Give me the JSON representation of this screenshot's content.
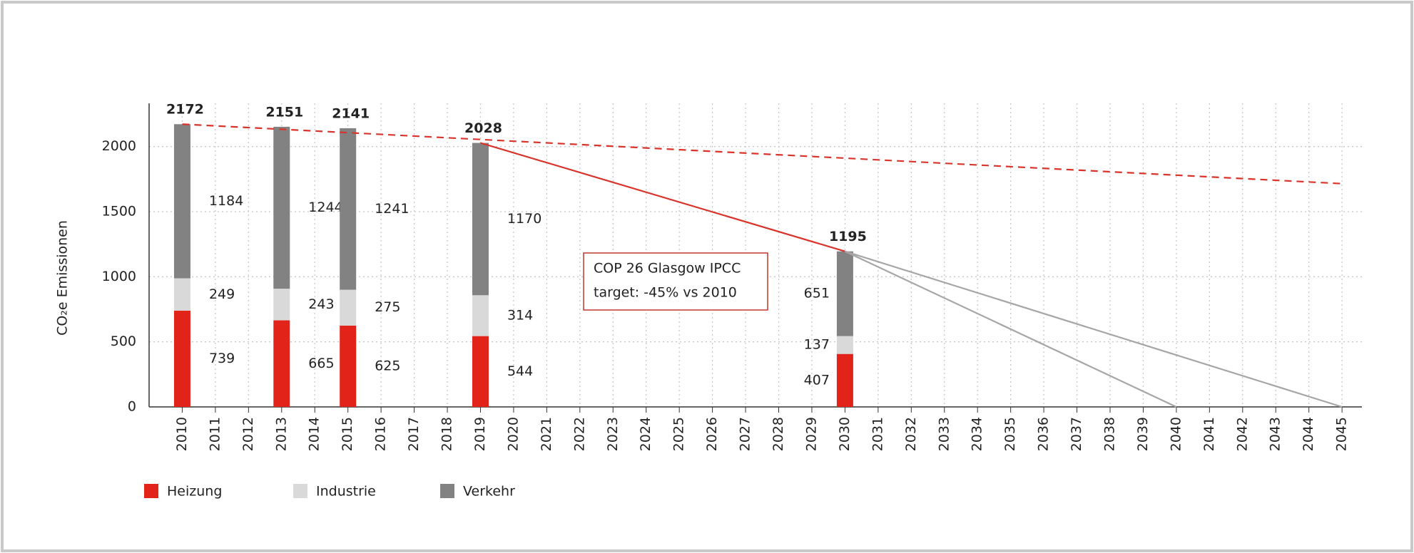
{
  "chart_data": {
    "type": "stacked-bar",
    "y_label": "CO₂e Emissionen",
    "x": [
      2010,
      2013,
      2015,
      2019,
      2030
    ],
    "series": [
      {
        "name": "Heizung",
        "color": "#e2231a",
        "values": [
          739,
          665,
          625,
          544,
          407
        ]
      },
      {
        "name": "Industrie",
        "color": "#d9d9d9",
        "values": [
          249,
          243,
          275,
          314,
          137
        ]
      },
      {
        "name": "Verkehr",
        "color": "#828282",
        "values": [
          1184,
          1244,
          1241,
          1170,
          651
        ]
      }
    ],
    "totals": [
      2172,
      2151,
      2141,
      2028,
      1195
    ],
    "lines": [
      {
        "color": "#d9342b",
        "dashed": true,
        "x": [
          2010,
          2045
        ],
        "values": [
          2172,
          1715
        ]
      },
      {
        "color": "#d9342b",
        "dashed": false,
        "x": [
          2019,
          2030
        ],
        "values": [
          2028,
          1195
        ]
      },
      {
        "color": "#a6a6a6",
        "dashed": false,
        "x": [
          2030,
          2040
        ],
        "values": [
          1195,
          0
        ]
      },
      {
        "color": "#a6a6a6",
        "dashed": false,
        "x": [
          2030,
          2045
        ],
        "values": [
          1195,
          0
        ]
      }
    ],
    "annotation": [
      "COP 26 Glasgow IPCC",
      "target: -45% vs 2010"
    ],
    "xlim": [
      2009,
      2045.6
    ],
    "xticks": [
      2010,
      2011,
      2012,
      2013,
      2014,
      2015,
      2016,
      2017,
      2018,
      2019,
      2020,
      2021,
      2022,
      2023,
      2024,
      2025,
      2026,
      2027,
      2028,
      2029,
      2030,
      2031,
      2032,
      2033,
      2034,
      2035,
      2036,
      2037,
      2038,
      2039,
      2040,
      2041,
      2042,
      2043,
      2044,
      2045
    ],
    "ylim": [
      0,
      2250
    ],
    "yticks": [
      0,
      500,
      1000,
      1500,
      2000
    ],
    "grid": true
  }
}
